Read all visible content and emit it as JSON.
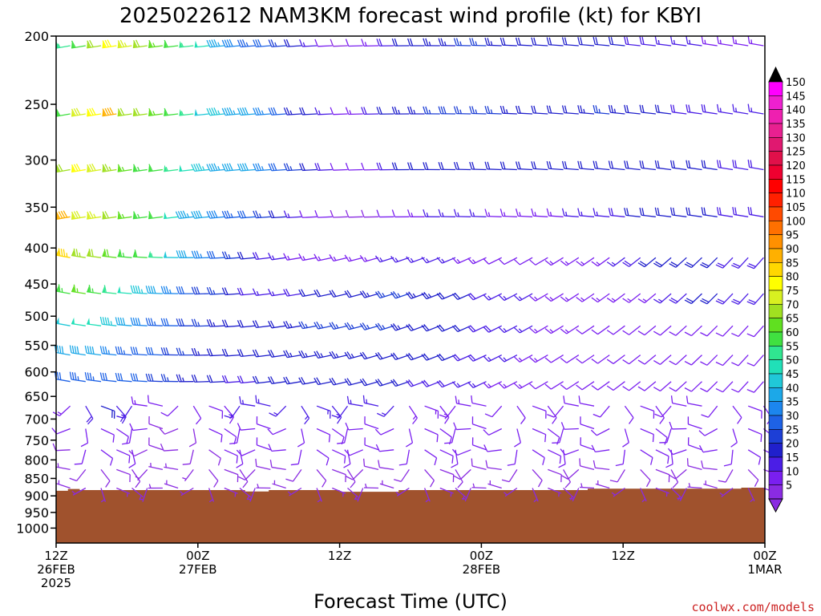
{
  "chart_data": {
    "type": "wind-barb-profile",
    "title": "2025022612 NAM3KM forecast wind profile (kt) for KBYI",
    "xlabel": "Forecast Time (UTC)",
    "credit": "coolwx.com/models",
    "y_axis": {
      "label": "",
      "ticks": [
        200,
        250,
        300,
        350,
        400,
        450,
        500,
        550,
        600,
        650,
        700,
        750,
        800,
        850,
        900,
        950,
        1000
      ],
      "range_hpa": [
        200,
        1050
      ],
      "scale": "log"
    },
    "x_axis": {
      "range_hours": [
        0,
        60
      ],
      "ticks": [
        {
          "hour": 0,
          "line1": "12Z",
          "line2": "26FEB",
          "line3": "2025"
        },
        {
          "hour": 12,
          "line1": "00Z",
          "line2": "27FEB",
          "line3": ""
        },
        {
          "hour": 24,
          "line1": "12Z",
          "line2": "",
          "line3": ""
        },
        {
          "hour": 36,
          "line1": "00Z",
          "line2": "28FEB",
          "line3": ""
        },
        {
          "hour": 48,
          "line1": "12Z",
          "line2": "",
          "line3": ""
        },
        {
          "hour": 60,
          "line1": "00Z",
          "line2": "1MAR",
          "line3": ""
        }
      ]
    },
    "terrain": {
      "color": "#a0522d",
      "surface_pressure_hpa": [
        [
          0,
          885
        ],
        [
          1,
          880
        ],
        [
          2,
          883
        ],
        [
          12,
          883
        ],
        [
          16,
          887
        ],
        [
          18,
          883
        ],
        [
          23,
          883
        ],
        [
          24,
          888
        ],
        [
          28,
          888
        ],
        [
          29,
          883
        ],
        [
          44,
          883
        ],
        [
          45,
          879
        ],
        [
          57,
          879
        ],
        [
          58,
          876
        ],
        [
          60,
          876
        ]
      ]
    },
    "colorbar": {
      "levels": [
        5,
        10,
        15,
        20,
        25,
        30,
        35,
        40,
        45,
        50,
        55,
        60,
        65,
        70,
        75,
        80,
        85,
        90,
        95,
        100,
        105,
        110,
        115,
        120,
        125,
        130,
        135,
        140,
        145,
        150
      ],
      "colors": [
        "#8a2be2",
        "#7a1ff0",
        "#4b1ee6",
        "#2020cc",
        "#1d3fd6",
        "#1e62e6",
        "#1c86ee",
        "#1ca8e8",
        "#20c8d8",
        "#20e0b8",
        "#30e690",
        "#40e040",
        "#60e020",
        "#a0e020",
        "#d8f020",
        "#ffff00",
        "#ffd700",
        "#ffb000",
        "#ff9000",
        "#ff7000",
        "#ff4a00",
        "#ff2000",
        "#ff0000",
        "#ee0030",
        "#e0104a",
        "#e01870",
        "#e82090",
        "#ee20b0",
        "#ee20d0",
        "#ff00ff"
      ]
    },
    "series": [
      {
        "name": "",
        "pressure": 200,
        "speed": [
          55,
          60,
          72,
          80,
          76,
          70,
          66,
          62,
          56,
          50,
          44,
          38,
          34,
          30,
          26,
          22,
          16,
          12,
          8,
          10,
          14,
          18,
          20,
          22,
          24,
          24,
          26,
          26,
          24,
          22,
          20,
          20,
          20,
          22,
          22,
          22,
          20,
          18,
          18,
          16,
          16,
          16,
          14,
          14,
          14,
          14
        ]
      },
      {
        "name": "",
        "pressure": 250,
        "speed": [
          60,
          78,
          82,
          90,
          72,
          70,
          66,
          62,
          56,
          48,
          46,
          44,
          40,
          36,
          30,
          24,
          20,
          16,
          10,
          14,
          18,
          22,
          24,
          24,
          26,
          28,
          26,
          26,
          26,
          24,
          22,
          22,
          22,
          22,
          24,
          26,
          24,
          22,
          20,
          20,
          18,
          18,
          18,
          16,
          16,
          16
        ]
      },
      {
        "name": "",
        "pressure": 300,
        "speed": [
          70,
          80,
          78,
          74,
          66,
          64,
          60,
          56,
          50,
          46,
          44,
          42,
          40,
          36,
          32,
          26,
          22,
          18,
          12,
          10,
          12,
          18,
          20,
          22,
          22,
          22,
          22,
          22,
          22,
          20,
          20,
          20,
          20,
          20,
          20,
          20,
          20,
          22,
          22,
          22,
          20,
          20,
          20,
          18,
          18,
          18
        ]
      },
      {
        "name": "",
        "pressure": 350,
        "speed": [
          90,
          78,
          76,
          70,
          66,
          64,
          60,
          52,
          44,
          40,
          38,
          34,
          30,
          26,
          20,
          16,
          12,
          10,
          8,
          8,
          8,
          10,
          12,
          14,
          16,
          16,
          16,
          16,
          14,
          14,
          14,
          14,
          14,
          16,
          16,
          16,
          18,
          20,
          22,
          22,
          20,
          20,
          20,
          18,
          18,
          18
        ]
      },
      {
        "name": "",
        "pressure": 400,
        "speed": [
          86,
          74,
          72,
          68,
          64,
          60,
          56,
          48,
          40,
          36,
          32,
          26,
          22,
          18,
          16,
          14,
          14,
          14,
          14,
          14,
          14,
          16,
          16,
          16,
          16,
          16,
          14,
          14,
          12,
          12,
          12,
          12,
          14,
          14,
          14,
          14,
          16,
          18,
          20,
          22,
          20,
          20,
          20,
          18,
          18,
          18
        ]
      },
      {
        "name": "",
        "pressure": 450,
        "speed": [
          64,
          66,
          64,
          58,
          52,
          46,
          40,
          36,
          32,
          28,
          26,
          22,
          18,
          16,
          16,
          18,
          20,
          22,
          22,
          22,
          24,
          26,
          26,
          24,
          24,
          22,
          20,
          18,
          16,
          16,
          16,
          14,
          14,
          14,
          14,
          14,
          14,
          14,
          14,
          16,
          18,
          20,
          20,
          18,
          18,
          18
        ]
      },
      {
        "name": "",
        "pressure": 500,
        "speed": [
          48,
          52,
          50,
          46,
          42,
          38,
          34,
          30,
          28,
          26,
          24,
          22,
          20,
          20,
          22,
          24,
          26,
          26,
          26,
          26,
          26,
          26,
          24,
          22,
          22,
          22,
          20,
          18,
          18,
          16,
          16,
          14,
          14,
          14,
          12,
          12,
          12,
          12,
          12,
          12,
          12,
          12,
          12,
          12,
          12,
          12
        ]
      },
      {
        "name": "",
        "pressure": 550,
        "speed": [
          40,
          42,
          40,
          36,
          34,
          32,
          30,
          28,
          26,
          24,
          22,
          20,
          20,
          20,
          22,
          24,
          24,
          24,
          24,
          24,
          22,
          22,
          22,
          20,
          20,
          20,
          18,
          18,
          16,
          16,
          14,
          14,
          12,
          12,
          12,
          12,
          12,
          10,
          10,
          10,
          10,
          10,
          10,
          10,
          10,
          10
        ]
      },
      {
        "name": "",
        "pressure": 600,
        "speed": [
          32,
          34,
          34,
          32,
          30,
          30,
          28,
          26,
          24,
          22,
          20,
          18,
          18,
          20,
          20,
          20,
          20,
          20,
          20,
          20,
          20,
          20,
          20,
          18,
          18,
          18,
          16,
          16,
          14,
          14,
          14,
          12,
          12,
          10,
          10,
          10,
          10,
          10,
          10,
          10,
          10,
          10,
          10,
          10,
          10,
          10
        ]
      },
      {
        "name": "",
        "pressure": 650,
        "speed": [
          14,
          18,
          20,
          18,
          16,
          14,
          12,
          10,
          10,
          12,
          14,
          16,
          16,
          16,
          16,
          16,
          16,
          16,
          16,
          16,
          16,
          16,
          14,
          14,
          14,
          14,
          14,
          12,
          12,
          12,
          12,
          12,
          10,
          10,
          10,
          10,
          10,
          10,
          10,
          10,
          10,
          10,
          10,
          10,
          10,
          10
        ]
      },
      {
        "name": "",
        "pressure": 700,
        "speed": [
          10,
          12,
          12,
          10,
          10,
          10,
          8,
          8,
          8,
          10,
          12,
          12,
          12,
          12,
          12,
          12,
          12,
          12,
          12,
          12,
          12,
          12,
          12,
          12,
          12,
          12,
          12,
          12,
          12,
          10,
          10,
          10,
          10,
          10,
          10,
          10,
          10,
          10,
          10,
          10,
          10,
          10,
          10,
          10,
          10,
          10
        ]
      },
      {
        "name": "",
        "pressure": 750,
        "speed": [
          8,
          10,
          10,
          10,
          10,
          8,
          8,
          8,
          8,
          8,
          10,
          10,
          10,
          10,
          10,
          10,
          10,
          10,
          10,
          10,
          10,
          10,
          10,
          10,
          10,
          10,
          10,
          10,
          10,
          10,
          10,
          10,
          10,
          10,
          10,
          10,
          10,
          10,
          10,
          10,
          10,
          10,
          10,
          10,
          10,
          10
        ]
      },
      {
        "name": "",
        "pressure": 800,
        "speed": [
          6,
          8,
          8,
          8,
          8,
          6,
          6,
          6,
          6,
          8,
          8,
          8,
          8,
          8,
          8,
          8,
          8,
          8,
          8,
          8,
          8,
          8,
          8,
          8,
          8,
          8,
          8,
          8,
          8,
          8,
          8,
          8,
          8,
          8,
          8,
          8,
          8,
          8,
          8,
          8,
          8,
          8,
          8,
          8,
          8,
          8
        ]
      },
      {
        "name": "",
        "pressure": 850,
        "speed": [
          6,
          6,
          6,
          6,
          6,
          6,
          6,
          6,
          6,
          6,
          6,
          6,
          6,
          6,
          6,
          6,
          6,
          6,
          6,
          6,
          6,
          6,
          6,
          6,
          6,
          6,
          6,
          6,
          6,
          6,
          6,
          6,
          6,
          6,
          6,
          6,
          6,
          6,
          6,
          6,
          6,
          6,
          6,
          6,
          6,
          6
        ]
      }
    ]
  }
}
